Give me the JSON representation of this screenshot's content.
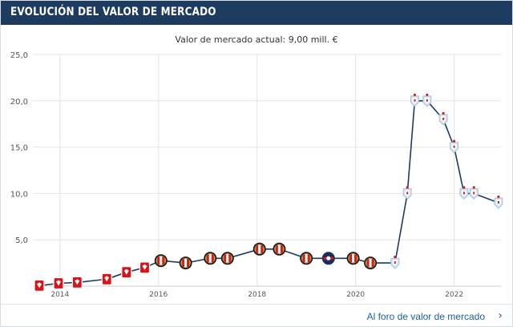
{
  "header": {
    "title": "EVOLUCIÓN DEL VALOR DE MERCADO"
  },
  "subtitle": "Valor de mercado actual: 9,00 mill. €",
  "footer": {
    "link_label": "Al foro de valor de mercado",
    "chevron": "›"
  },
  "chart_data": {
    "type": "line",
    "title": "",
    "xlabel": "",
    "ylabel": "",
    "ylim": [
      0,
      25
    ],
    "xlim": [
      2013.45,
      2022.95
    ],
    "yticks": [
      "25,0",
      "20,0",
      "15,0",
      "10,0",
      "5,0"
    ],
    "xticks": [
      "2014",
      "2016",
      "2018",
      "2020",
      "2022"
    ],
    "grid": true,
    "line_color": "#1d3b5e",
    "series": [
      {
        "name": "",
        "points": [
          {
            "x": 2013.58,
            "y": 0.05,
            "club": "red"
          },
          {
            "x": 2013.97,
            "y": 0.3,
            "club": "red"
          },
          {
            "x": 2014.35,
            "y": 0.4,
            "club": "red"
          },
          {
            "x": 2014.95,
            "y": 0.75,
            "club": "red"
          },
          {
            "x": 2015.35,
            "y": 1.5,
            "club": "red"
          },
          {
            "x": 2015.72,
            "y": 2.0,
            "club": "red"
          },
          {
            "x": 2016.05,
            "y": 2.75,
            "club": "feyenoord"
          },
          {
            "x": 2016.55,
            "y": 2.5,
            "club": "feyenoord"
          },
          {
            "x": 2017.05,
            "y": 3.0,
            "club": "feyenoord"
          },
          {
            "x": 2017.4,
            "y": 3.0,
            "club": "feyenoord"
          },
          {
            "x": 2018.05,
            "y": 4.0,
            "club": "feyenoord"
          },
          {
            "x": 2018.45,
            "y": 4.0,
            "club": "feyenoord"
          },
          {
            "x": 2019.0,
            "y": 3.0,
            "club": "feyenoord"
          },
          {
            "x": 2019.45,
            "y": 3.0,
            "club": "navy"
          },
          {
            "x": 2019.95,
            "y": 3.0,
            "club": "feyenoord"
          },
          {
            "x": 2020.3,
            "y": 2.5,
            "club": "feyenoord"
          },
          {
            "x": 2020.8,
            "y": 2.5,
            "club": "celta"
          },
          {
            "x": 2021.05,
            "y": 10.0,
            "club": "celta"
          },
          {
            "x": 2021.2,
            "y": 20.0,
            "club": "celta"
          },
          {
            "x": 2021.45,
            "y": 20.0,
            "club": "celta"
          },
          {
            "x": 2021.78,
            "y": 18.0,
            "club": "celta"
          },
          {
            "x": 2022.0,
            "y": 15.0,
            "club": "celta"
          },
          {
            "x": 2022.2,
            "y": 10.0,
            "club": "celta"
          },
          {
            "x": 2022.4,
            "y": 10.0,
            "club": "celta"
          },
          {
            "x": 2022.9,
            "y": 9.0,
            "club": "celta"
          }
        ]
      }
    ]
  }
}
